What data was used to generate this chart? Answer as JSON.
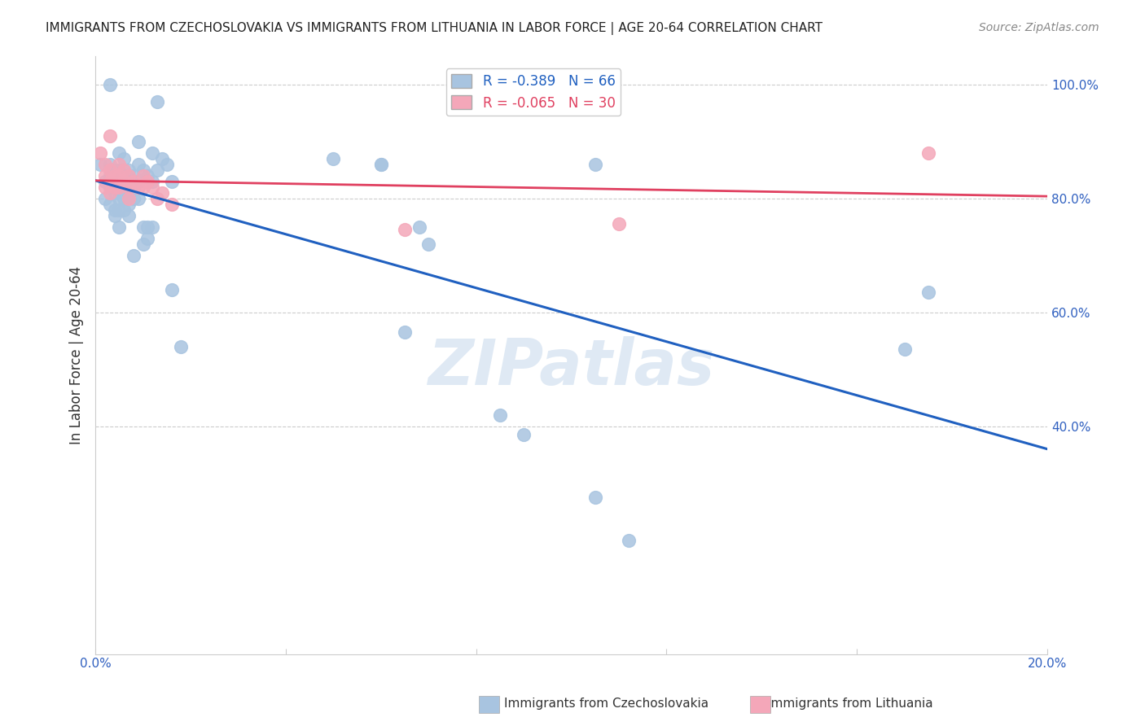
{
  "title": "IMMIGRANTS FROM CZECHOSLOVAKIA VS IMMIGRANTS FROM LITHUANIA IN LABOR FORCE | AGE 20-64 CORRELATION CHART",
  "source": "Source: ZipAtlas.com",
  "ylabel": "In Labor Force | Age 20-64",
  "xlim": [
    0.0,
    0.2
  ],
  "ylim": [
    0.0,
    1.05
  ],
  "yticks": [
    0.4,
    0.6,
    0.8,
    1.0
  ],
  "xticks": [
    0.0,
    0.04,
    0.08,
    0.12,
    0.16,
    0.2
  ],
  "ytick_labels": [
    "40.0%",
    "60.0%",
    "80.0%",
    "100.0%"
  ],
  "xtick_labels": [
    "0.0%",
    "",
    "",
    "",
    "",
    "20.0%"
  ],
  "czech_color": "#a8c4e0",
  "lith_color": "#f4a7b9",
  "czech_line_color": "#2060c0",
  "lith_line_color": "#e04060",
  "R_czech": -0.389,
  "N_czech": 66,
  "R_lith": -0.065,
  "N_lith": 30,
  "watermark": "ZIPatlas",
  "czech_points": [
    [
      0.001,
      0.86
    ],
    [
      0.002,
      0.83
    ],
    [
      0.002,
      0.8
    ],
    [
      0.003,
      0.84
    ],
    [
      0.003,
      0.82
    ],
    [
      0.003,
      0.79
    ],
    [
      0.003,
      0.86
    ],
    [
      0.004,
      0.85
    ],
    [
      0.004,
      0.83
    ],
    [
      0.004,
      0.81
    ],
    [
      0.004,
      0.78
    ],
    [
      0.004,
      0.77
    ],
    [
      0.005,
      0.88
    ],
    [
      0.005,
      0.85
    ],
    [
      0.005,
      0.82
    ],
    [
      0.005,
      0.8
    ],
    [
      0.005,
      0.78
    ],
    [
      0.005,
      0.75
    ],
    [
      0.006,
      0.87
    ],
    [
      0.006,
      0.84
    ],
    [
      0.006,
      0.82
    ],
    [
      0.006,
      0.8
    ],
    [
      0.006,
      0.78
    ],
    [
      0.007,
      0.85
    ],
    [
      0.007,
      0.83
    ],
    [
      0.007,
      0.81
    ],
    [
      0.007,
      0.79
    ],
    [
      0.007,
      0.77
    ],
    [
      0.008,
      0.84
    ],
    [
      0.008,
      0.82
    ],
    [
      0.008,
      0.8
    ],
    [
      0.009,
      0.9
    ],
    [
      0.009,
      0.86
    ],
    [
      0.009,
      0.83
    ],
    [
      0.009,
      0.8
    ],
    [
      0.01,
      0.85
    ],
    [
      0.01,
      0.75
    ],
    [
      0.01,
      0.72
    ],
    [
      0.011,
      0.84
    ],
    [
      0.011,
      0.75
    ],
    [
      0.011,
      0.73
    ],
    [
      0.012,
      0.88
    ],
    [
      0.012,
      0.83
    ],
    [
      0.012,
      0.75
    ],
    [
      0.013,
      0.97
    ],
    [
      0.013,
      0.85
    ],
    [
      0.014,
      0.87
    ],
    [
      0.015,
      0.86
    ],
    [
      0.016,
      0.83
    ],
    [
      0.016,
      0.64
    ],
    [
      0.018,
      0.54
    ],
    [
      0.05,
      0.87
    ],
    [
      0.06,
      0.86
    ],
    [
      0.065,
      0.565
    ],
    [
      0.068,
      0.75
    ],
    [
      0.07,
      0.72
    ],
    [
      0.085,
      0.42
    ],
    [
      0.09,
      0.385
    ],
    [
      0.105,
      0.275
    ],
    [
      0.112,
      0.2
    ],
    [
      0.008,
      0.7
    ],
    [
      0.003,
      1.0
    ],
    [
      0.175,
      0.635
    ],
    [
      0.17,
      0.535
    ],
    [
      0.105,
      0.86
    ],
    [
      0.06,
      0.86
    ]
  ],
  "lith_points": [
    [
      0.001,
      0.88
    ],
    [
      0.002,
      0.86
    ],
    [
      0.002,
      0.84
    ],
    [
      0.002,
      0.82
    ],
    [
      0.003,
      0.85
    ],
    [
      0.003,
      0.83
    ],
    [
      0.003,
      0.81
    ],
    [
      0.004,
      0.84
    ],
    [
      0.004,
      0.82
    ],
    [
      0.005,
      0.86
    ],
    [
      0.005,
      0.84
    ],
    [
      0.005,
      0.82
    ],
    [
      0.006,
      0.85
    ],
    [
      0.006,
      0.83
    ],
    [
      0.007,
      0.84
    ],
    [
      0.007,
      0.82
    ],
    [
      0.007,
      0.8
    ],
    [
      0.008,
      0.83
    ],
    [
      0.009,
      0.82
    ],
    [
      0.01,
      0.84
    ],
    [
      0.01,
      0.82
    ],
    [
      0.011,
      0.83
    ],
    [
      0.012,
      0.82
    ],
    [
      0.013,
      0.8
    ],
    [
      0.014,
      0.81
    ],
    [
      0.016,
      0.79
    ],
    [
      0.065,
      0.745
    ],
    [
      0.11,
      0.755
    ],
    [
      0.175,
      0.88
    ],
    [
      0.003,
      0.91
    ]
  ]
}
